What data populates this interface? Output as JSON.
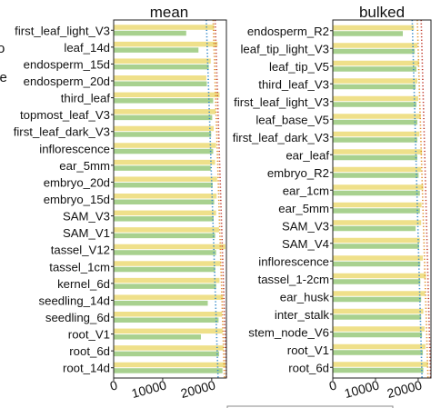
{
  "colors": {
    "series_a": "#efe08a",
    "series_b": "#a8d18f",
    "line_red": "#c0392b",
    "line_orange": "#e08a1e",
    "line_blue": "#2f86c8",
    "axis": "#222222"
  },
  "cut_labels": [
    "o",
    "se"
  ],
  "chart_data": [
    {
      "type": "bar",
      "title": "mean",
      "orientation": "horizontal",
      "xlim": [
        0,
        23000
      ],
      "xticks": [
        0,
        10000,
        20000
      ],
      "xtick_labels": [
        "0",
        "10000",
        "20000"
      ],
      "categories": [
        "first_leaf_light_V3",
        "leaf_14d",
        "endosperm_15d",
        "endosperm_20d",
        "third_leaf",
        "topmost_leaf_V3",
        "first_leaf_dark_V3",
        "inflorescence",
        "ear_5mm",
        "embryo_20d",
        "embryo_15d",
        "SAM_V3",
        "SAM_V1",
        "tassel_V12",
        "tassel_1cm",
        "kernel_6d",
        "seedling_14d",
        "seedling_6d",
        "root_V1",
        "root_6d",
        "root_14d"
      ],
      "series": [
        {
          "values": [
            20500,
            21200,
            19800,
            18900,
            21600,
            20800,
            20400,
            20900,
            20700,
            21100,
            21000,
            20900,
            21500,
            22800,
            21800,
            21600,
            22300,
            22100,
            22200,
            22400,
            22800
          ]
        },
        {
          "values": [
            14800,
            17300,
            19400,
            19000,
            20300,
            20100,
            19900,
            20300,
            19800,
            20200,
            20500,
            20400,
            20700,
            20900,
            20700,
            20900,
            19200,
            21400,
            17800,
            21500,
            22200
          ]
        }
      ],
      "trend_lines": [
        {
          "from": 20700,
          "to": 23000
        },
        {
          "from": 20300,
          "to": 22600
        },
        {
          "from": 18900,
          "to": 21300
        }
      ]
    },
    {
      "type": "bar",
      "title": "bulked",
      "orientation": "horizontal",
      "xlim": [
        0,
        23000
      ],
      "xticks": [
        0,
        10000,
        20000
      ],
      "xtick_labels": [
        "0",
        "10000",
        "20000"
      ],
      "categories": [
        "endosperm_R2",
        "leaf_tip_light_V3",
        "leaf_tip_V5",
        "third_leaf_V3",
        "first_leaf_light_V3",
        "leaf_base_V5",
        "first_leaf_dark_V3",
        "ear_leaf",
        "embryo_R2",
        "ear_1cm",
        "ear_5mm",
        "SAM_V3",
        "SAM_V4",
        "inflorescence",
        "tassel_1-2cm",
        "ear_husk",
        "inter_stalk",
        "stem_node_V6",
        "root_V1",
        "root_6d"
      ],
      "series": [
        {
          "values": [
            19000,
            19800,
            20200,
            19800,
            20000,
            20600,
            20300,
            20900,
            20700,
            21200,
            20800,
            20700,
            20400,
            21100,
            21800,
            21600,
            21200,
            21500,
            21700,
            22300
          ]
        },
        {
          "values": [
            16400,
            19200,
            19600,
            19400,
            19600,
            19800,
            19800,
            19800,
            20100,
            20400,
            20400,
            19400,
            20200,
            20500,
            20500,
            20700,
            20700,
            20900,
            21100,
            21200
          ]
        }
      ],
      "trend_lines": [
        {
          "from": 20700,
          "to": 22900
        },
        {
          "from": 19800,
          "to": 22300
        },
        {
          "from": 18600,
          "to": 20900
        }
      ]
    }
  ]
}
